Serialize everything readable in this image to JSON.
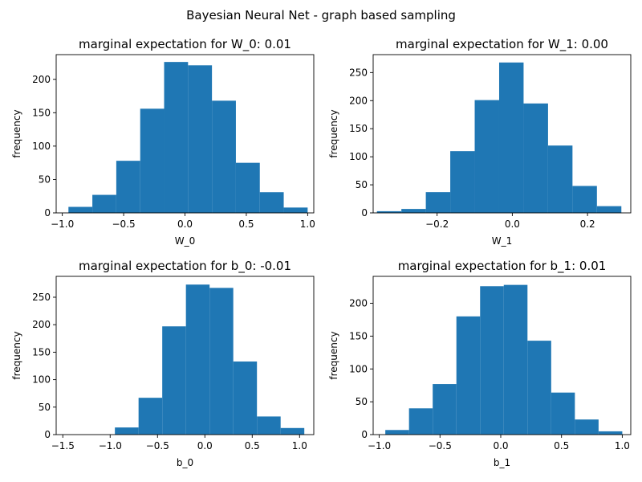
{
  "figure": {
    "title": "Bayesian Neural Net - graph based sampling"
  },
  "chart_data": [
    {
      "type": "bar",
      "title": "marginal expectation for W_0: 0.01",
      "xlabel": "W_0",
      "ylabel": "frequency",
      "xlim": [
        -1.05,
        1.05
      ],
      "ylim": [
        0,
        237
      ],
      "xticks": [
        -1.0,
        -0.5,
        0.0,
        0.5,
        1.0
      ],
      "xtick_labels": [
        "−1.0",
        "−0.5",
        "0.0",
        "0.5",
        "1.0"
      ],
      "yticks": [
        0,
        50,
        100,
        150,
        200
      ],
      "ytick_labels": [
        "0",
        "50",
        "100",
        "150",
        "200"
      ],
      "bin_edges": [
        -0.95,
        -0.755,
        -0.56,
        -0.365,
        -0.17,
        0.025,
        0.22,
        0.415,
        0.61,
        0.805,
        1.0
      ],
      "values": [
        9,
        27,
        78,
        156,
        226,
        221,
        168,
        75,
        31,
        8
      ],
      "color": "#1f77b4"
    },
    {
      "type": "bar",
      "title": "marginal expectation for W_1: 0.00",
      "xlabel": "W_1",
      "ylabel": "frequency",
      "xlim": [
        -0.37,
        0.315
      ],
      "ylim": [
        0,
        282
      ],
      "xticks": [
        -0.2,
        0.0,
        0.2
      ],
      "xtick_labels": [
        "−0.2",
        "0.0",
        "0.2"
      ],
      "yticks": [
        0,
        50,
        100,
        150,
        200,
        250
      ],
      "ytick_labels": [
        "0",
        "50",
        "100",
        "150",
        "200",
        "250"
      ],
      "bin_edges": [
        -0.36,
        -0.295,
        -0.23,
        -0.165,
        -0.1,
        -0.035,
        0.03,
        0.095,
        0.16,
        0.225,
        0.29
      ],
      "values": [
        3,
        7,
        37,
        110,
        201,
        268,
        195,
        120,
        48,
        12
      ],
      "color": "#1f77b4"
    },
    {
      "type": "bar",
      "title": "marginal expectation for b_0: -0.01",
      "xlabel": "b_0",
      "ylabel": "frequency",
      "xlim": [
        -1.57,
        1.15
      ],
      "ylim": [
        0,
        288
      ],
      "xticks": [
        -1.5,
        -1.0,
        -0.5,
        0.0,
        0.5,
        1.0
      ],
      "xtick_labels": [
        "−1.5",
        "−1.0",
        "−0.5",
        "0.0",
        "0.5",
        "1.0"
      ],
      "yticks": [
        0,
        50,
        100,
        150,
        200,
        250
      ],
      "ytick_labels": [
        "0",
        "50",
        "100",
        "150",
        "200",
        "250"
      ],
      "bin_edges": [
        -1.45,
        -1.2,
        -0.95,
        -0.7,
        -0.45,
        -0.2,
        0.05,
        0.3,
        0.55,
        0.8,
        1.05
      ],
      "values": [
        0,
        0,
        13,
        67,
        197,
        273,
        267,
        133,
        33,
        12
      ],
      "color": "#1f77b4"
    },
    {
      "type": "bar",
      "title": "marginal expectation for b_1: 0.01",
      "xlabel": "b_1",
      "ylabel": "frequency",
      "xlim": [
        -1.05,
        1.07
      ],
      "ylim": [
        0,
        241
      ],
      "xticks": [
        -1.0,
        -0.5,
        0.0,
        0.5,
        1.0
      ],
      "xtick_labels": [
        "−1.0",
        "−0.5",
        "0.0",
        "0.5",
        "1.0"
      ],
      "yticks": [
        0,
        50,
        100,
        150,
        200
      ],
      "ytick_labels": [
        "0",
        "50",
        "100",
        "150",
        "200"
      ],
      "bin_edges": [
        -0.95,
        -0.755,
        -0.56,
        -0.365,
        -0.17,
        0.025,
        0.22,
        0.415,
        0.61,
        0.805,
        1.0
      ],
      "values": [
        7,
        40,
        77,
        180,
        226,
        228,
        143,
        64,
        23,
        5
      ],
      "color": "#1f77b4"
    }
  ]
}
